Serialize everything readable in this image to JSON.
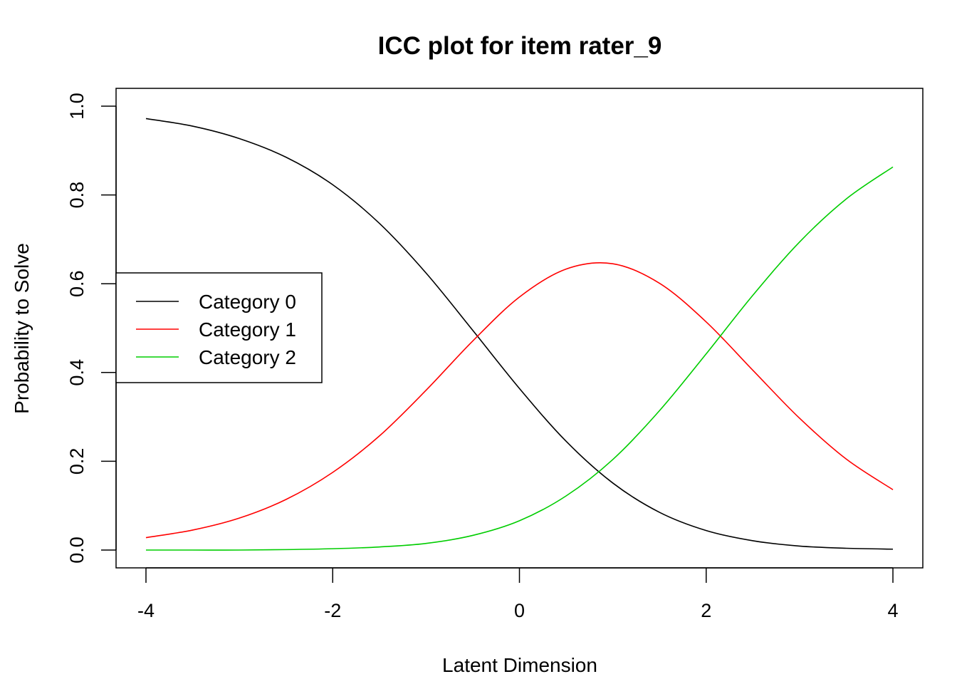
{
  "chart_data": {
    "type": "line",
    "title": "ICC plot for item rater_9",
    "xlabel": "Latent Dimension",
    "ylabel": "Probability to Solve",
    "xlim": [
      -4,
      4
    ],
    "ylim": [
      0,
      1
    ],
    "xticks": [
      "-4",
      "-2",
      "0",
      "2",
      "4"
    ],
    "yticks": [
      "0.0",
      "0.2",
      "0.4",
      "0.6",
      "0.8",
      "1.0"
    ],
    "grid": false,
    "legend_position": "left",
    "x": [
      -4,
      -3.5,
      -3,
      -2.5,
      -2,
      -1.5,
      -1,
      -0.5,
      0,
      0.5,
      1,
      1.5,
      2,
      2.5,
      3,
      3.5,
      4
    ],
    "series": [
      {
        "name": "Category 0",
        "color": "#000000",
        "values": [
          0.972,
          0.955,
          0.927,
          0.885,
          0.823,
          0.736,
          0.624,
          0.495,
          0.364,
          0.245,
          0.151,
          0.085,
          0.044,
          0.021,
          0.009,
          0.004,
          0.002
        ]
      },
      {
        "name": "Category 1",
        "color": "#ff0000",
        "values": [
          0.028,
          0.045,
          0.072,
          0.114,
          0.175,
          0.257,
          0.36,
          0.471,
          0.57,
          0.633,
          0.645,
          0.601,
          0.514,
          0.405,
          0.297,
          0.205,
          0.136
        ]
      },
      {
        "name": "Category 2",
        "color": "#00cd00",
        "values": [
          0.0,
          0.0,
          0.0,
          0.001,
          0.003,
          0.007,
          0.015,
          0.033,
          0.066,
          0.122,
          0.204,
          0.314,
          0.442,
          0.574,
          0.694,
          0.791,
          0.863
        ]
      }
    ]
  }
}
